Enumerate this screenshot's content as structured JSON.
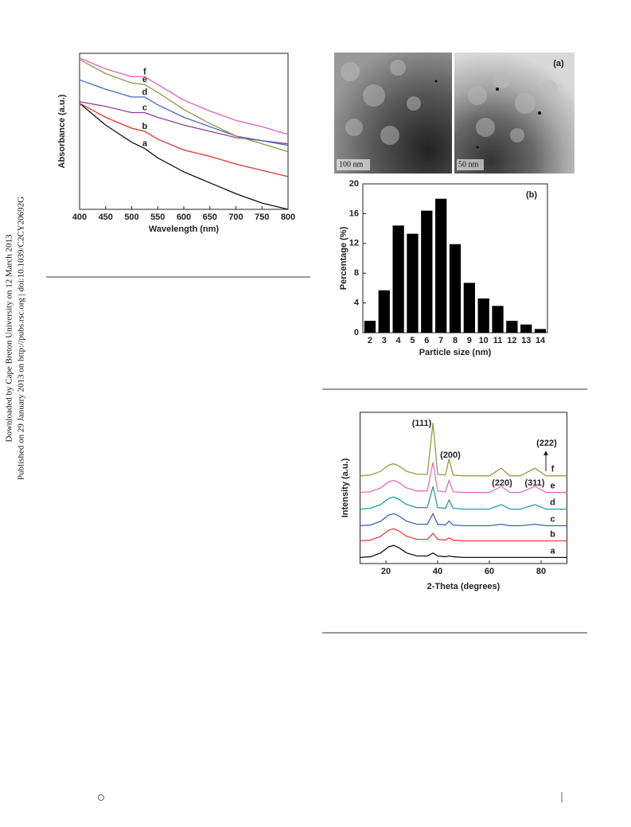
{
  "sidebar": [
    "Downloaded by Cape Breton University on 12 March 2013",
    "Published on 29 January 2013 on http://pubs.rsc.org | doi:10.1039/C2CY20692G"
  ],
  "tem": {
    "label": "(a)",
    "scale_bars": [
      "100 nm",
      "50 nm"
    ]
  },
  "chart_data": [
    {
      "type": "line",
      "x_label": "Wavelength (nm)",
      "y_label": "Absorbance (a.u.)",
      "x": [
        400,
        450,
        500,
        525,
        550,
        600,
        650,
        700,
        750,
        800
      ],
      "xlim": [
        400,
        800
      ],
      "xticks": [
        400,
        450,
        500,
        550,
        600,
        650,
        700,
        750,
        800
      ],
      "ylim": [
        0,
        1
      ],
      "series": [
        {
          "name": "a",
          "color": "#111111",
          "values": [
            0.68,
            0.54,
            0.43,
            0.39,
            0.33,
            0.24,
            0.17,
            0.1,
            0.04,
            0
          ]
        },
        {
          "name": "b",
          "color": "#e83030",
          "values": [
            0.68,
            0.59,
            0.52,
            0.5,
            0.45,
            0.38,
            0.34,
            0.29,
            0.25,
            0.21
          ]
        },
        {
          "name": "c",
          "color": "#9040a0",
          "values": [
            0.69,
            0.66,
            0.62,
            0.62,
            0.59,
            0.54,
            0.5,
            0.46,
            0.44,
            0.42
          ]
        },
        {
          "name": "d",
          "color": "#4a6ac0",
          "values": [
            0.83,
            0.77,
            0.72,
            0.72,
            0.67,
            0.59,
            0.53,
            0.47,
            0.44,
            0.41
          ]
        },
        {
          "name": "e",
          "color": "#8a9a40",
          "values": [
            0.96,
            0.87,
            0.81,
            0.8,
            0.75,
            0.64,
            0.55,
            0.47,
            0.42,
            0.37
          ]
        },
        {
          "name": "f",
          "color": "#e060c0",
          "values": [
            0.97,
            0.9,
            0.85,
            0.85,
            0.8,
            0.7,
            0.63,
            0.57,
            0.53,
            0.48
          ]
        }
      ]
    },
    {
      "type": "bar",
      "annotation": "(b)",
      "x_label": "Particle size (nm)",
      "y_label": "Percentage (%)",
      "categories": [
        "2",
        "3",
        "4",
        "5",
        "6",
        "7",
        "8",
        "9",
        "10",
        "11",
        "12",
        "13",
        "14"
      ],
      "values": [
        1.6,
        5.7,
        14.4,
        13.3,
        16.4,
        18,
        11.9,
        6.7,
        4.6,
        3.6,
        1.6,
        1.1,
        0.5
      ],
      "color": "#000000",
      "ylim": [
        0,
        20
      ],
      "yticks": [
        0,
        4,
        8,
        12,
        16,
        20
      ]
    },
    {
      "type": "line",
      "x_label": "2-Theta (degrees)",
      "y_label": "Intensity (a.u.)",
      "annotations": [
        "(111)",
        "(200)",
        "(220)",
        "(311)",
        "(222)"
      ],
      "x": [
        10,
        14,
        18,
        21,
        23,
        25,
        28,
        32,
        36,
        38.2,
        40,
        43,
        44.4,
        46,
        50,
        55,
        60,
        64.6,
        68,
        72,
        77.6,
        82,
        86,
        90
      ],
      "xlim": [
        10,
        90
      ],
      "xticks": [
        20,
        40,
        60,
        80
      ],
      "ylim": [
        0,
        1
      ],
      "series": [
        {
          "name": "a",
          "color": "#111111",
          "values": [
            0.04,
            0.045,
            0.07,
            0.11,
            0.12,
            0.105,
            0.07,
            0.05,
            0.05,
            0.07,
            0.05,
            0.045,
            0.05,
            0.045,
            0.04,
            0.04,
            0.04,
            0.04,
            0.04,
            0.04,
            0.04,
            0.04,
            0.04,
            0.04
          ]
        },
        {
          "name": "b",
          "color": "#e84040",
          "values": [
            0.15,
            0.155,
            0.18,
            0.22,
            0.23,
            0.215,
            0.18,
            0.16,
            0.16,
            0.2,
            0.16,
            0.155,
            0.17,
            0.155,
            0.15,
            0.15,
            0.15,
            0.15,
            0.15,
            0.15,
            0.15,
            0.15,
            0.15,
            0.15
          ]
        },
        {
          "name": "c",
          "color": "#4060c0",
          "values": [
            0.25,
            0.255,
            0.28,
            0.32,
            0.33,
            0.315,
            0.28,
            0.26,
            0.26,
            0.33,
            0.26,
            0.255,
            0.28,
            0.255,
            0.25,
            0.25,
            0.25,
            0.26,
            0.25,
            0.25,
            0.26,
            0.25,
            0.25,
            0.25
          ]
        },
        {
          "name": "d",
          "color": "#20a0a0",
          "values": [
            0.36,
            0.365,
            0.39,
            0.43,
            0.44,
            0.425,
            0.39,
            0.37,
            0.37,
            0.51,
            0.37,
            0.365,
            0.42,
            0.365,
            0.36,
            0.36,
            0.36,
            0.39,
            0.36,
            0.36,
            0.39,
            0.36,
            0.36,
            0.36
          ]
        },
        {
          "name": "e",
          "color": "#e070c0",
          "values": [
            0.47,
            0.475,
            0.5,
            0.54,
            0.55,
            0.535,
            0.5,
            0.48,
            0.48,
            0.67,
            0.48,
            0.475,
            0.55,
            0.475,
            0.47,
            0.47,
            0.47,
            0.51,
            0.47,
            0.47,
            0.51,
            0.47,
            0.47,
            0.47
          ]
        },
        {
          "name": "f",
          "color": "#9a9a40",
          "values": [
            0.58,
            0.585,
            0.61,
            0.65,
            0.66,
            0.645,
            0.61,
            0.59,
            0.59,
            0.93,
            0.59,
            0.585,
            0.69,
            0.585,
            0.58,
            0.58,
            0.58,
            0.63,
            0.58,
            0.58,
            0.63,
            0.58,
            0.58,
            0.58
          ]
        }
      ]
    }
  ]
}
